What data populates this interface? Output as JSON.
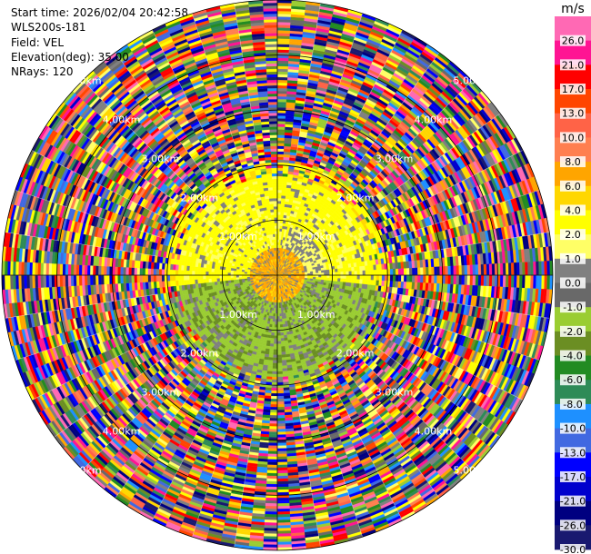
{
  "header": {
    "start_time": "Start time: 2026/02/04 20:42:58",
    "instrument": "WLS200s-181",
    "field": "Field: VEL",
    "elevation": "Elevation(deg): 35.00",
    "nrays": "NRays: 120"
  },
  "chart_data": {
    "type": "heatmap",
    "projection": "polar (PPI scan)",
    "field": "VEL",
    "unit": "m/s",
    "elevation_deg": 35.0,
    "nrays": 120,
    "max_range_km": 5.0,
    "range_rings_km": [
      1.0,
      2.0,
      3.0,
      4.0,
      5.0
    ],
    "ring_labels": [
      "1.00km",
      "2.00km",
      "3.00km",
      "4.00km",
      "5.00km"
    ],
    "crosshair": true,
    "colorbar": {
      "label": "m/s",
      "levels": [
        {
          "min": -30.0,
          "max": -26.0,
          "color": "#191970"
        },
        {
          "min": -26.0,
          "max": -21.0,
          "color": "#000080"
        },
        {
          "min": -21.0,
          "max": -17.0,
          "color": "#0000cd"
        },
        {
          "min": -17.0,
          "max": -13.0,
          "color": "#0000ff"
        },
        {
          "min": -13.0,
          "max": -10.0,
          "color": "#4169e1"
        },
        {
          "min": -10.0,
          "max": -8.0,
          "color": "#1e90ff"
        },
        {
          "min": -8.0,
          "max": -6.0,
          "color": "#2e8b57"
        },
        {
          "min": -6.0,
          "max": -4.0,
          "color": "#228b22"
        },
        {
          "min": -4.0,
          "max": -2.0,
          "color": "#6b8e23"
        },
        {
          "min": -2.0,
          "max": -1.0,
          "color": "#9acd32"
        },
        {
          "min": -1.0,
          "max": 0.0,
          "color": "#696969"
        },
        {
          "min": 0.0,
          "max": 1.0,
          "color": "#808080"
        },
        {
          "min": 1.0,
          "max": 2.0,
          "color": "#ffff66"
        },
        {
          "min": 2.0,
          "max": 4.0,
          "color": "#ffff00"
        },
        {
          "min": 4.0,
          "max": 6.0,
          "color": "#ffd700"
        },
        {
          "min": 6.0,
          "max": 8.0,
          "color": "#ffa500"
        },
        {
          "min": 8.0,
          "max": 10.0,
          "color": "#ff7f50"
        },
        {
          "min": 10.0,
          "max": 13.0,
          "color": "#ff6347"
        },
        {
          "min": 13.0,
          "max": 17.0,
          "color": "#ff4500"
        },
        {
          "min": 17.0,
          "max": 21.0,
          "color": "#ff0000"
        },
        {
          "min": 21.0,
          "max": 26.0,
          "color": "#ff1493"
        },
        {
          "min": 26.0,
          "max": 30.0,
          "color": "#ff69b4"
        }
      ],
      "tick_labels": [
        "26.0",
        "21.0",
        "17.0",
        "13.0",
        "10.0",
        "8.0",
        "6.0",
        "4.0",
        "2.0",
        "1.0",
        "0.0",
        "-1.0",
        "-2.0",
        "-4.0",
        "-6.0",
        "-8.0",
        "-10.0",
        "-13.0",
        "-17.0",
        "-21.0",
        "-26.0",
        "-30.0"
      ]
    },
    "regions": [
      {
        "range_km": [
          0.0,
          0.5
        ],
        "description": "near-zero/low positive",
        "dominant_colors": [
          "#ffa500",
          "#ffd700",
          "#808080"
        ]
      },
      {
        "range_km": [
          0.5,
          2.0
        ],
        "north_half_colors": [
          "#ffff00",
          "#ffff66",
          "#808080"
        ],
        "south_half_colors": [
          "#9acd32",
          "#6b8e23",
          "#808080"
        ]
      },
      {
        "range_km": [
          2.0,
          5.0
        ],
        "description": "noise (random values across full scale)"
      }
    ]
  }
}
